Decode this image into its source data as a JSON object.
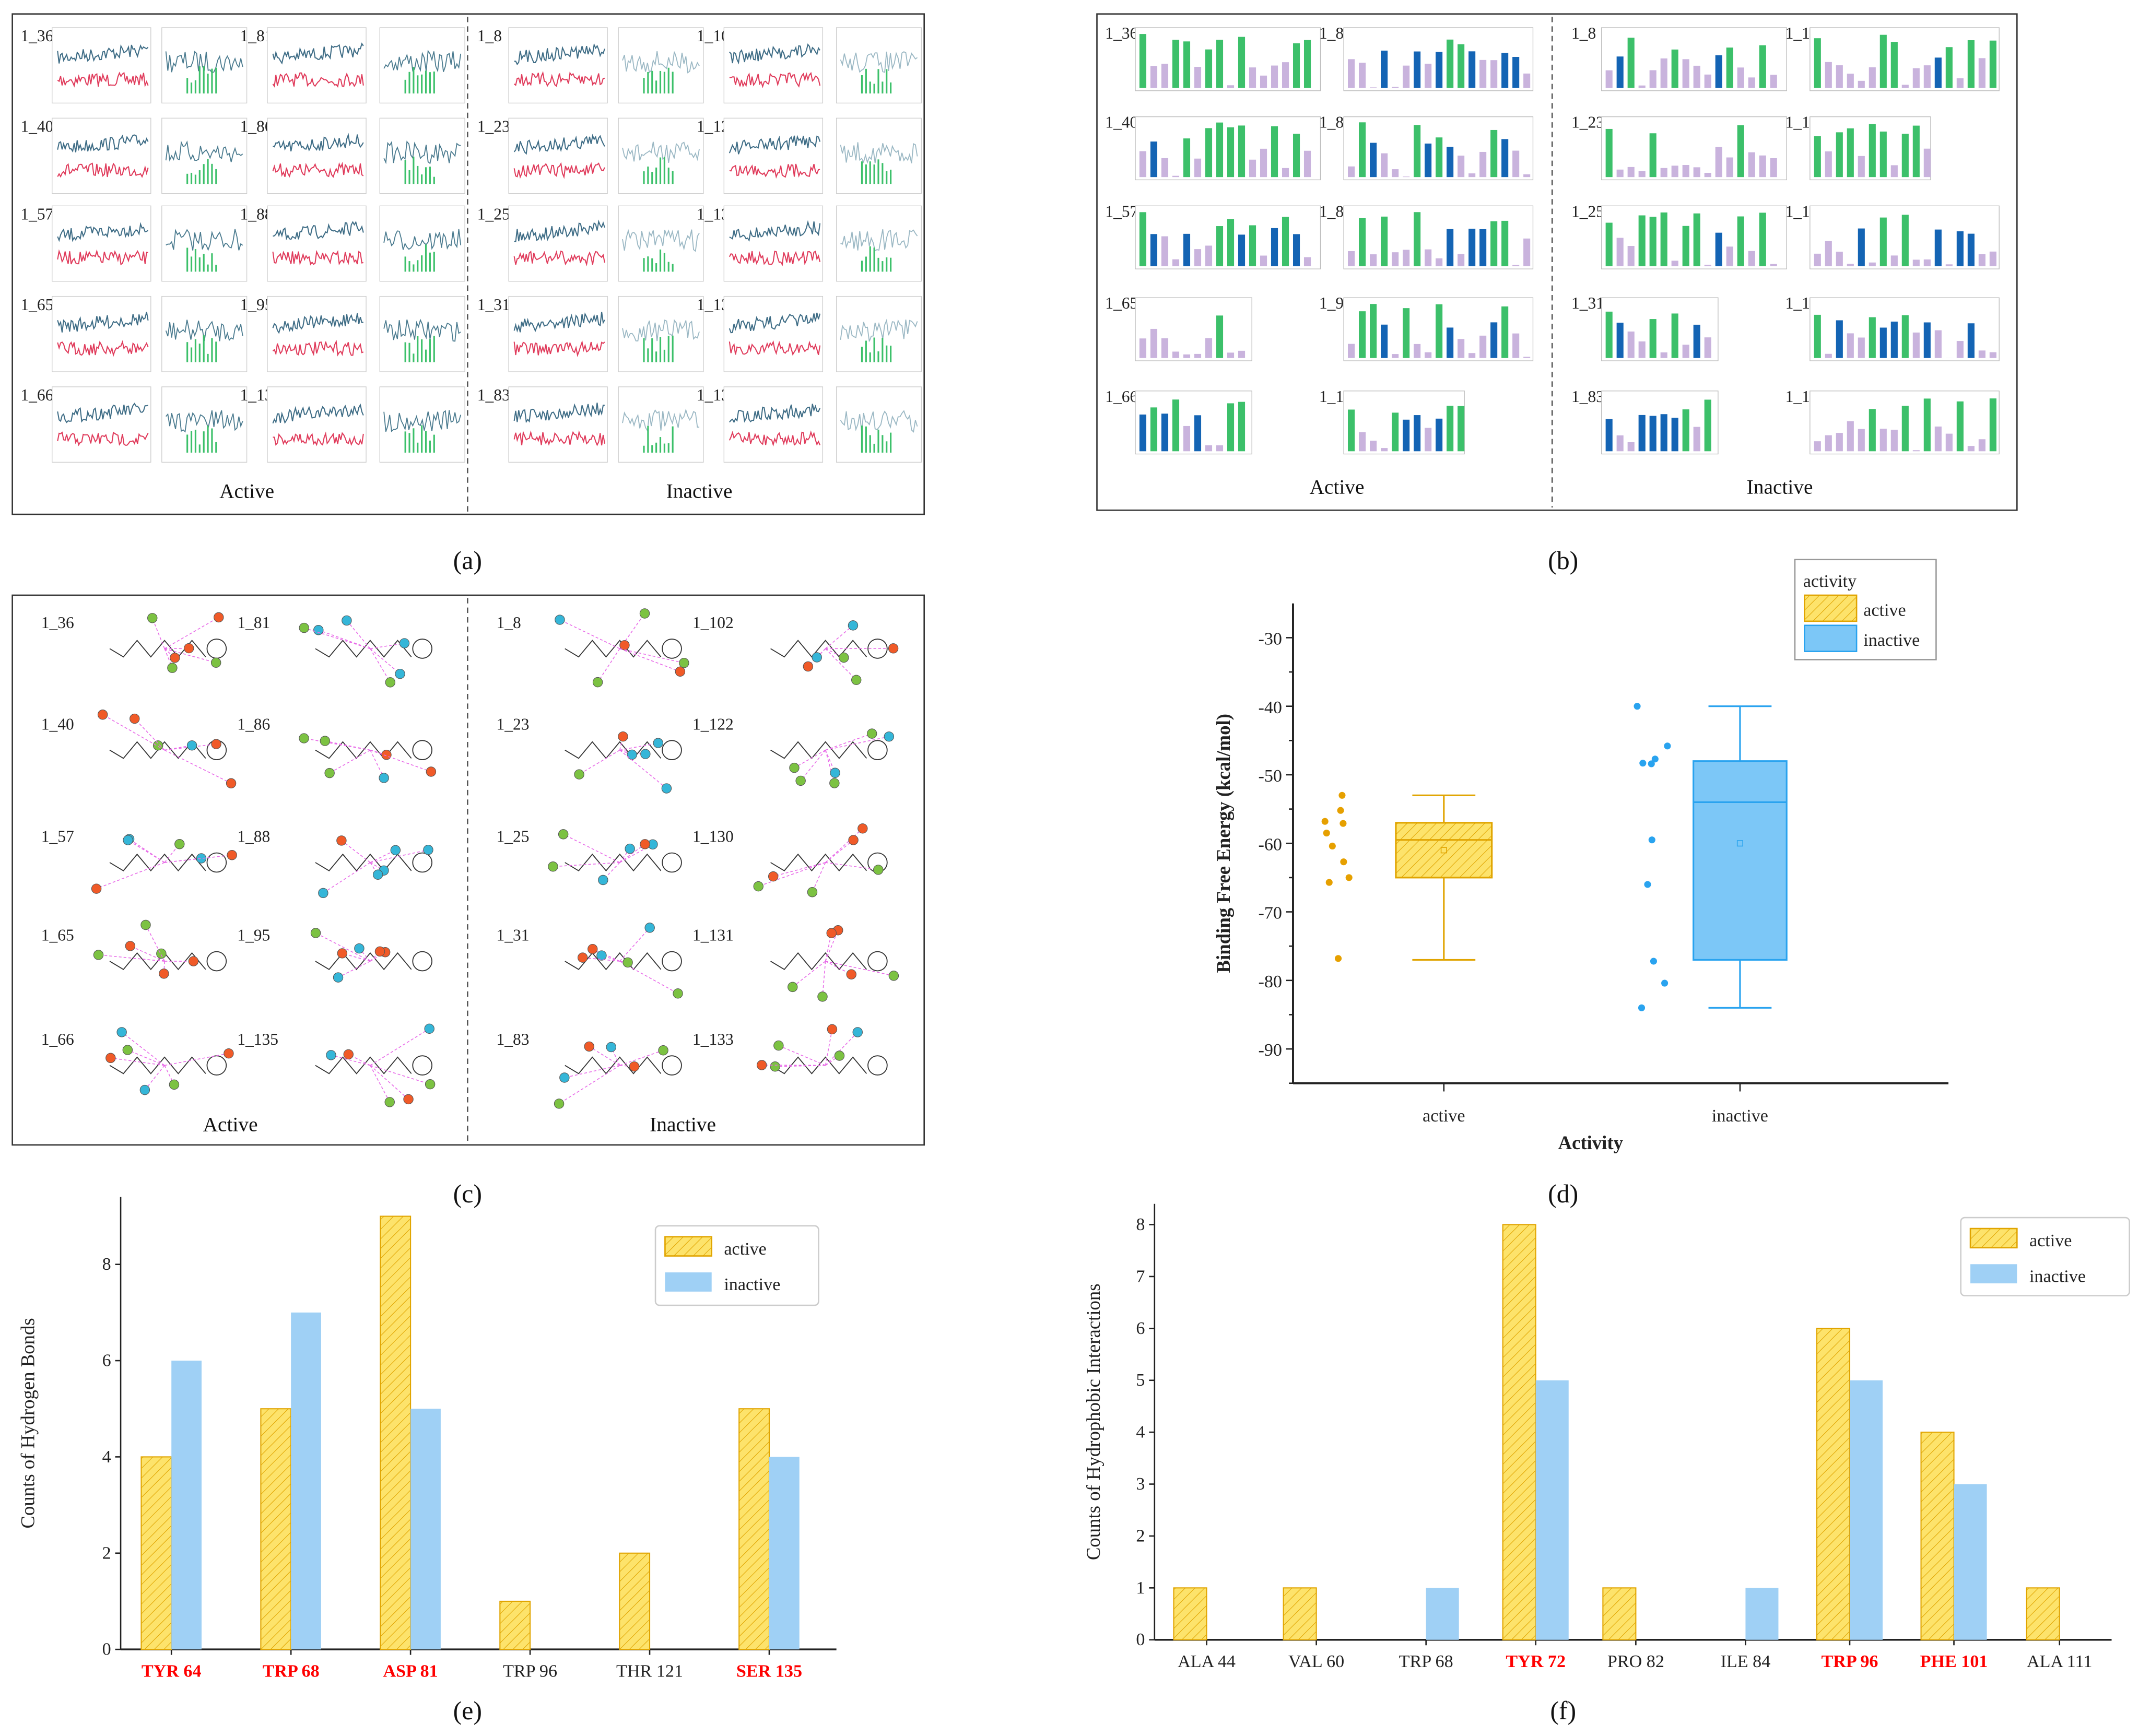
{
  "colors": {
    "active_fill": "#fde36b",
    "active_edge": "#e0a400",
    "inactive_fill": "#9fd0f5",
    "inactive_box": "#7cc7f7",
    "inactive_edge": "#29a3ef",
    "highlight": "#ff0000",
    "rmsd_a": "#3f6d86",
    "rmsd_b": "#e03c5c",
    "green": "#3cc06a",
    "purple": "#c9b3dd",
    "blue": "#1464b4"
  },
  "panels": {
    "a": {
      "label": "(a)",
      "active_label": "Active",
      "inactive_label": "Inactive",
      "active_ids": [
        "1_36",
        "1_81",
        "1_40",
        "1_86",
        "1_57",
        "1_88",
        "1_65",
        "1_95",
        "1_66",
        "1_135"
      ],
      "inactive_ids": [
        "1_8",
        "1_102",
        "1_23",
        "1_122",
        "1_25",
        "1_130",
        "1_31",
        "1_131",
        "1_83",
        "1_133"
      ]
    },
    "b": {
      "label": "(b)",
      "active_label": "Active",
      "inactive_label": "Inactive",
      "active_ids": [
        "1_36",
        "1_81",
        "1_40",
        "1_86",
        "1_57",
        "1_88",
        "1_65",
        "1_95",
        "1_66",
        "1_135"
      ],
      "inactive_ids": [
        "1_8",
        "1_102",
        "1_23",
        "1_122",
        "1_25",
        "1_130",
        "1_31",
        "1_131",
        "1_83",
        "1_133"
      ]
    },
    "c": {
      "label": "(c)",
      "active_label": "Active",
      "inactive_label": "Inactive",
      "active_ids": [
        "1_36",
        "1_81",
        "1_40",
        "1_86",
        "1_57",
        "1_88",
        "1_65",
        "1_95",
        "1_66",
        "1_135"
      ],
      "inactive_ids": [
        "1_8",
        "1_102",
        "1_23",
        "1_122",
        "1_25",
        "1_130",
        "1_31",
        "1_131",
        "1_83",
        "1_133"
      ]
    },
    "d": {
      "label": "(d)"
    },
    "e": {
      "label": "(e)"
    },
    "f": {
      "label": "(f)"
    }
  },
  "chart_data": [
    {
      "id": "d",
      "type": "box",
      "xlabel": "Activity",
      "ylabel": "Binding Free Energy (kcal/mol)",
      "ylim": [
        -95,
        -25
      ],
      "yticks": [
        -30,
        -40,
        -50,
        -60,
        -70,
        -80,
        -90
      ],
      "legend": {
        "title": "activity",
        "placement": "top-right",
        "entries": [
          "active",
          "inactive"
        ]
      },
      "categories": [
        "active",
        "inactive"
      ],
      "boxes": [
        {
          "name": "active",
          "whisker_low": -77,
          "q1": -65,
          "median": -59.5,
          "q3": -57,
          "whisker_high": -53,
          "mean": -61,
          "points": [
            -53,
            -55.2,
            -57.1,
            -56.8,
            -58.5,
            -60.4,
            -62.7,
            -65,
            -65.7,
            -76.8
          ]
        },
        {
          "name": "inactive",
          "whisker_low": -84,
          "q1": -77,
          "median": -54,
          "q3": -48,
          "whisker_high": -40,
          "mean": -60,
          "points": [
            -40,
            -45.8,
            -47.7,
            -48.3,
            -48.4,
            -59.5,
            -66,
            -77.2,
            -80.4,
            -84
          ]
        }
      ]
    },
    {
      "id": "e",
      "type": "bar",
      "ylabel": "Counts of Hydrogen Bonds",
      "ylim": [
        0,
        9.4
      ],
      "yticks": [
        0,
        2,
        4,
        6,
        8
      ],
      "legend": {
        "placement": "top-right",
        "entries": [
          "active",
          "inactive"
        ]
      },
      "categories": [
        "TYR 64",
        "TRP 68",
        "ASP 81",
        "TRP 96",
        "THR 121",
        "SER 135"
      ],
      "highlighted": [
        true,
        true,
        true,
        false,
        false,
        true
      ],
      "series": [
        {
          "name": "active",
          "values": [
            4,
            5,
            9,
            1,
            2,
            5
          ]
        },
        {
          "name": "inactive",
          "values": [
            6,
            7,
            5,
            0,
            0,
            4
          ]
        }
      ]
    },
    {
      "id": "f",
      "type": "bar",
      "ylabel": "Counts of Hydrophobic Interactions",
      "ylim": [
        0,
        8.4
      ],
      "yticks": [
        0,
        1,
        2,
        3,
        4,
        5,
        6,
        7,
        8
      ],
      "legend": {
        "placement": "top-right",
        "entries": [
          "active",
          "inactive"
        ]
      },
      "categories": [
        "ALA 44",
        "VAL 60",
        "TRP 68",
        "TYR 72",
        "PRO 82",
        "ILE 84",
        "TRP 96",
        "PHE 101",
        "ALA 111"
      ],
      "highlighted": [
        false,
        false,
        false,
        true,
        false,
        false,
        true,
        true,
        false
      ],
      "series": [
        {
          "name": "active",
          "values": [
            1,
            1,
            0,
            8,
            1,
            0,
            6,
            4,
            1
          ]
        },
        {
          "name": "inactive",
          "values": [
            0,
            0,
            1,
            5,
            0,
            1,
            5,
            3,
            0
          ]
        }
      ]
    }
  ]
}
